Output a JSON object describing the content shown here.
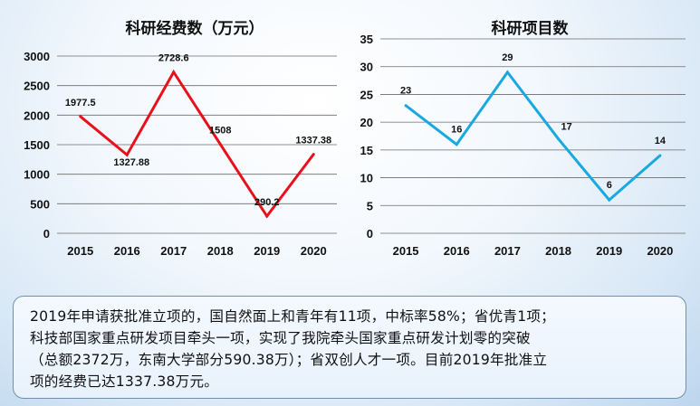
{
  "chart_data": [
    {
      "type": "line",
      "title": "科研经费数（万元）",
      "categories": [
        "2015",
        "2016",
        "2017",
        "2018",
        "2019",
        "2020"
      ],
      "series": [
        {
          "name": "科研经费数（万元）",
          "values": [
            1977.5,
            1327.88,
            2728.6,
            1508,
            290.2,
            1337.38
          ],
          "color": "#e8101a"
        }
      ],
      "value_labels": [
        "1977.5",
        "1327.88",
        "2728.6",
        "1508",
        "290.2",
        "1337.38"
      ],
      "y_ticks": [
        "0",
        "500",
        "1000",
        "1500",
        "2000",
        "2500",
        "3000"
      ],
      "ylim": [
        0,
        3000
      ],
      "grid": true,
      "xlabel": "",
      "ylabel": ""
    },
    {
      "type": "line",
      "title": "科研项目数",
      "categories": [
        "2015",
        "2016",
        "2017",
        "2018",
        "2019",
        "2020"
      ],
      "series": [
        {
          "name": "科研项目数",
          "values": [
            23,
            16,
            29,
            17,
            6,
            14
          ],
          "color": "#1aa8e0"
        }
      ],
      "value_labels": [
        "23",
        "16",
        "29",
        "17",
        "6",
        "14"
      ],
      "y_ticks": [
        "0",
        "5",
        "10",
        "15",
        "20",
        "25",
        "30",
        "35"
      ],
      "ylim": [
        0,
        35
      ],
      "grid": true,
      "xlabel": "",
      "ylabel": ""
    }
  ],
  "note": {
    "lines": [
      "2019年申请获批准立项的，国自然面上和青年有11项，中标率58%；省优青1项；",
      "科技部国家重点研发项目牵头一项，实现了我院牵头国家重点研发计划零的突破",
      "（总额2372万，东南大学部分590.38万）；省双创人才一项。目前2019年批准立",
      "项的经费已达1337.38万元。"
    ]
  }
}
